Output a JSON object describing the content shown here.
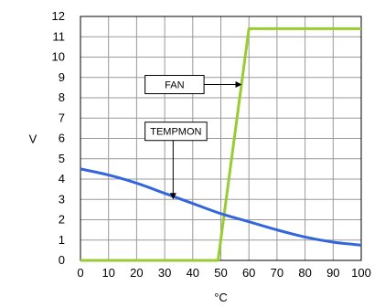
{
  "chart_data": {
    "type": "line",
    "title": "",
    "xlabel": "°C",
    "ylabel": "V",
    "xlim": [
      0,
      100
    ],
    "ylim": [
      0,
      12
    ],
    "xticks": [
      0,
      10,
      20,
      30,
      40,
      50,
      60,
      70,
      80,
      90,
      100
    ],
    "yticks": [
      0,
      1,
      2,
      3,
      4,
      5,
      6,
      7,
      8,
      9,
      10,
      11,
      12
    ],
    "grid": true,
    "colors": {
      "fan": "#99cc33",
      "tempmon": "#3366dd",
      "grid": "#999999"
    },
    "series": [
      {
        "name": "FAN",
        "x": [
          0,
          49,
          60,
          100
        ],
        "y": [
          0,
          0,
          11.4,
          11.4
        ]
      },
      {
        "name": "TEMPMON",
        "x": [
          0,
          10,
          20,
          30,
          40,
          50,
          60,
          70,
          80,
          90,
          100
        ],
        "y": [
          4.5,
          4.2,
          3.8,
          3.3,
          2.8,
          2.3,
          1.9,
          1.5,
          1.15,
          0.9,
          0.75
        ]
      }
    ],
    "annotations": [
      {
        "text": "FAN",
        "target_series": "FAN",
        "target": [
          57.5,
          8.5
        ],
        "arrow": "right"
      },
      {
        "text": "TEMPMON",
        "target_series": "TEMPMON",
        "target": [
          33,
          3.0
        ],
        "arrow": "down"
      }
    ]
  }
}
